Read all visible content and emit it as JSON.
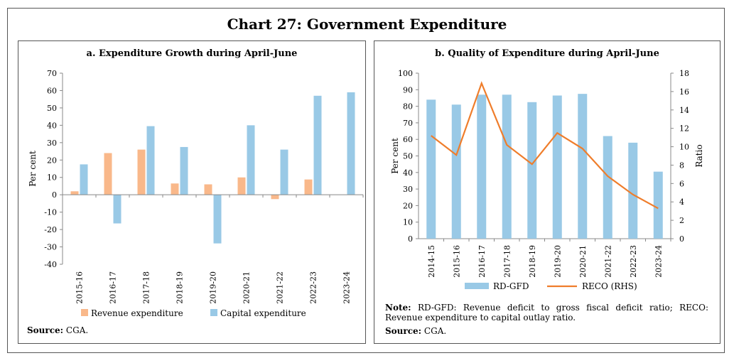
{
  "title": "Chart 27: Government Expenditure",
  "chart_data": [
    {
      "type": "bar",
      "title": "a. Expenditure Growth during April-June",
      "ylabel": "Per cent",
      "ylim": [
        -40,
        70
      ],
      "yticks": [
        70,
        60,
        50,
        40,
        30,
        20,
        10,
        0,
        -10,
        -20,
        -30,
        -40
      ],
      "categories": [
        "2015-16",
        "2016-17",
        "2017-18",
        "2018-19",
        "2019-20",
        "2020-21",
        "2021-22",
        "2022-23",
        "2023-24"
      ],
      "series": [
        {
          "name": "Revenue expenditure",
          "color": "#f9b88a",
          "values": [
            2,
            24,
            26,
            6.5,
            6,
            10,
            -2.5,
            8.8,
            null
          ]
        },
        {
          "name": "Capital expenditure",
          "color": "#99c9e6",
          "values": [
            17.5,
            -16.5,
            39.5,
            27.5,
            -28,
            40,
            26,
            57,
            59
          ]
        }
      ],
      "legend": "bottom",
      "source_label": "Source:",
      "source_text": "CGA."
    },
    {
      "type": "bar-line",
      "title": "b. Quality of Expenditure during April-June",
      "ylabel": "Per cent",
      "y2label": "Ratio",
      "ylim": [
        0,
        100
      ],
      "y2lim": [
        0,
        18
      ],
      "yticks": [
        100,
        90,
        80,
        70,
        60,
        50,
        40,
        30,
        20,
        10,
        0
      ],
      "y2ticks": [
        18,
        16,
        14,
        12,
        10,
        8,
        6,
        4,
        2,
        0
      ],
      "categories": [
        "2014-15",
        "2015-16",
        "2016-17",
        "2017-18",
        "2018-19",
        "2019-20",
        "2020-21",
        "2021-22",
        "2022-23",
        "2023-24"
      ],
      "series": [
        {
          "name": "RD-GFD",
          "type": "bar",
          "axis": "left",
          "color": "#99c9e6",
          "values": [
            84,
            81,
            87,
            87,
            82.5,
            86.5,
            87.5,
            62,
            58,
            40.5
          ]
        },
        {
          "name": "RECO (RHS)",
          "type": "line",
          "axis": "right",
          "color": "#ef7d2b",
          "values": [
            11.2,
            9.1,
            16.9,
            10.2,
            8.1,
            11.5,
            9.8,
            6.8,
            4.8,
            3.3
          ]
        }
      ],
      "legend": "bottom",
      "note_label": "Note:",
      "note_text": "RD-GFD: Revenue deficit to gross fiscal deficit ratio; RECO: Revenue expenditure to capital outlay ratio.",
      "source_label": "Source:",
      "source_text": "CGA."
    }
  ]
}
